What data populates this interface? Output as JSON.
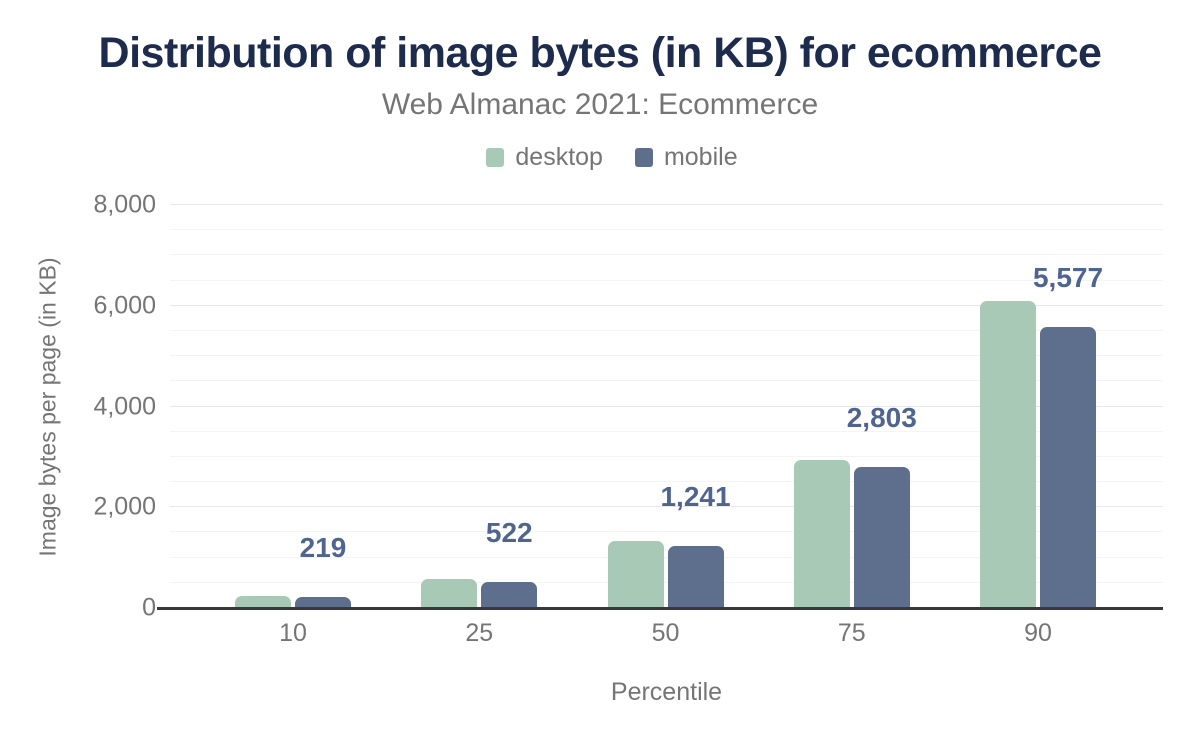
{
  "title": "Distribution of image bytes (in KB) for ecommerce",
  "subtitle": "Web Almanac 2021: Ecommerce",
  "legend": [
    {
      "label": "desktop",
      "color": "#a8c9b6"
    },
    {
      "label": "mobile",
      "color": "#5e6e8d"
    }
  ],
  "chart_data": {
    "type": "bar",
    "categories": [
      "10",
      "25",
      "50",
      "75",
      "90"
    ],
    "series": [
      {
        "name": "desktop",
        "color": "#a8c9b6",
        "values": [
          247,
          584,
          1328,
          2946,
          6085
        ]
      },
      {
        "name": "mobile",
        "color": "#5e6e8d",
        "values": [
          219,
          522,
          1241,
          2803,
          5577
        ]
      }
    ],
    "data_labels": {
      "series": "mobile",
      "values": [
        "219",
        "522",
        "1,241",
        "2,803",
        "5,577"
      ]
    },
    "xlabel": "Percentile",
    "ylabel": "Image bytes per page (in KB)",
    "ylim": [
      0,
      8000
    ],
    "yticks": [
      {
        "value": 0,
        "label": "0"
      },
      {
        "value": 2000,
        "label": "2,000"
      },
      {
        "value": 4000,
        "label": "4,000"
      },
      {
        "value": 6000,
        "label": "6,000"
      },
      {
        "value": 8000,
        "label": "8,000"
      }
    ],
    "major_grid_interval": 2000,
    "minor_grid_interval": 500,
    "grid": true,
    "legend_position": "top"
  },
  "colors": {
    "background": "#ffffff",
    "title_text": "#1d2b4c",
    "subtitle_text": "#757575",
    "axis_text": "#757575",
    "data_label_text": "#4f6590",
    "axis_line": "#38393c",
    "gridline_major": "#e7e7e7",
    "gridline_minor": "#f4f4f4",
    "desktop_bar": "#a8c9b6",
    "mobile_bar": "#5e6e8d"
  }
}
